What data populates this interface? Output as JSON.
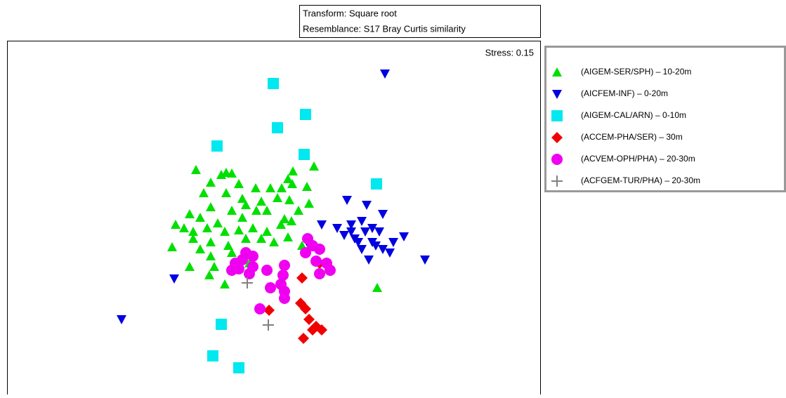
{
  "chart_data": {
    "type": "scatter",
    "title": "Transform: Square root",
    "subtitle": "Resemblance: S17 Bray Curtis similarity",
    "annotation": "Stress: 0.15",
    "xlim": [
      10,
      770
    ],
    "ylim": [
      562,
      58
    ],
    "series": [
      {
        "name": "(AIGEM-SER/SPH) – 10-20m",
        "color": "#00e000",
        "marker": "triangle-up",
        "x": [
          279,
          322,
          330,
          315,
          417,
          447,
          300,
          340,
          364,
          385,
          401,
          416,
          437,
          410,
          290,
          322,
          345,
          372,
          395,
          412,
          300,
          330,
          350,
          270,
          285,
          310,
          345,
          365,
          380,
          405,
          425,
          440,
          250,
          262,
          275,
          295,
          320,
          340,
          360,
          380,
          400,
          415,
          245,
          275,
          300,
          325,
          350,
          372,
          390,
          430,
          300,
          330,
          270,
          305,
          298,
          320,
          355,
          537,
          410,
          285
        ],
        "y": [
          242,
          246,
          247,
          249,
          244,
          237,
          260,
          262,
          268,
          268,
          268,
          262,
          266,
          255,
          275,
          275,
          283,
          287,
          282,
          285,
          295,
          300,
          292,
          305,
          310,
          318,
          310,
          300,
          300,
          312,
          300,
          290,
          320,
          325,
          330,
          325,
          330,
          328,
          325,
          330,
          320,
          315,
          352,
          340,
          345,
          350,
          340,
          340,
          345,
          350,
          365,
          360,
          380,
          380,
          392,
          405,
          375,
          410,
          338,
          355
        ]
      },
      {
        "name": "(AICFEM-INF) – 0-20m",
        "color": "#0000e0",
        "marker": "triangle-down",
        "x": [
          548,
          494,
          522,
          545,
          458,
          480,
          500,
          515,
          530,
          490,
          505,
          520,
          540,
          575,
          560,
          535,
          545,
          525,
          510,
          555,
          605,
          440,
          248,
          173,
          500,
          530,
          515
        ],
        "y": [
          105,
          285,
          292,
          305,
          320,
          325,
          320,
          315,
          325,
          335,
          340,
          330,
          330,
          337,
          345,
          350,
          355,
          370,
          345,
          360,
          370,
          350,
          397,
          455,
          330,
          345,
          355
        ]
      },
      {
        "name": "(AIGEM-CAL/ARN) – 0-10m",
        "color": "#00e8f0",
        "marker": "square",
        "x": [
          389,
          435,
          395,
          309,
          433,
          536,
          315,
          303,
          340
        ],
        "y": [
          119,
          163,
          182,
          208,
          220,
          262,
          462,
          507,
          524
        ]
      },
      {
        "name": "(ACCEM-PHA/SER) – 30m",
        "color": "#f00000",
        "marker": "diamond",
        "x": [
          430,
          455,
          383,
          428,
          435,
          440,
          450,
          458,
          445,
          432
        ],
        "y": [
          396,
          375,
          442,
          432,
          440,
          455,
          465,
          470,
          470,
          482
        ]
      },
      {
        "name": "(ACVEM-OPH/PHA) – 20-30m",
        "color": "#f000f0",
        "marker": "circle",
        "x": [
          350,
          345,
          340,
          330,
          360,
          355,
          380,
          405,
          403,
          400,
          405,
          405,
          385,
          370,
          438,
          445,
          455,
          435,
          450,
          465,
          470,
          455,
          360,
          335
        ],
        "y": [
          360,
          370,
          383,
          385,
          380,
          390,
          385,
          378,
          392,
          405,
          415,
          425,
          410,
          440,
          340,
          350,
          355,
          360,
          372,
          375,
          385,
          390,
          365,
          375
        ]
      },
      {
        "name": "(ACFGEM-TUR/PHA) – 20-30m",
        "color": "#808080",
        "marker": "plus",
        "x": [
          352,
          382
        ],
        "y": [
          403,
          463
        ]
      }
    ]
  }
}
